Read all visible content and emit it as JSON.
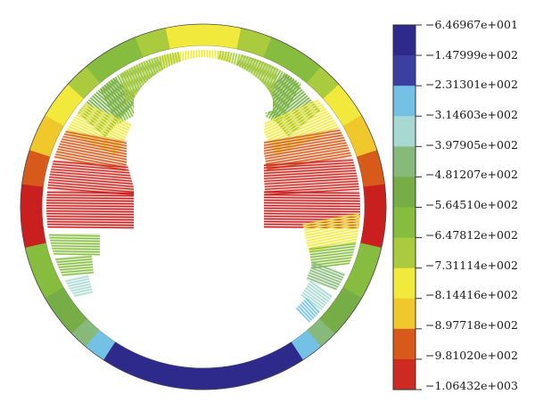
{
  "colors": {
    "c0": "#2e2a8c",
    "c1": "#3a3fa0",
    "c2": "#74c1e6",
    "c3": "#a8d8d2",
    "c4": "#86b97a",
    "c5": "#76ad47",
    "c6": "#86bd3f",
    "c7": "#aacb3d",
    "c8": "#f1ea3c",
    "c9": "#f0c82b",
    "c10": "#d75a1a",
    "c11": "#cc2a22",
    "c12": "#c91f1e"
  },
  "legend": {
    "bands": [
      "c0",
      "c1",
      "c2",
      "c3",
      "c4",
      "c5",
      "c6",
      "c7",
      "c8",
      "c9",
      "c10",
      "c11"
    ],
    "labels": [
      "−6.46967e+001",
      "−1.47999e+002",
      "−2.31301e+002",
      "−3.14603e+002",
      "−3.97905e+002",
      "−4.81207e+002",
      "−5.64510e+002",
      "−6.47812e+002",
      "−7.31114e+002",
      "−8.14416e+002",
      "−8.97718e+002",
      "−9.81020e+002",
      "−1.06432e+003"
    ]
  }
}
